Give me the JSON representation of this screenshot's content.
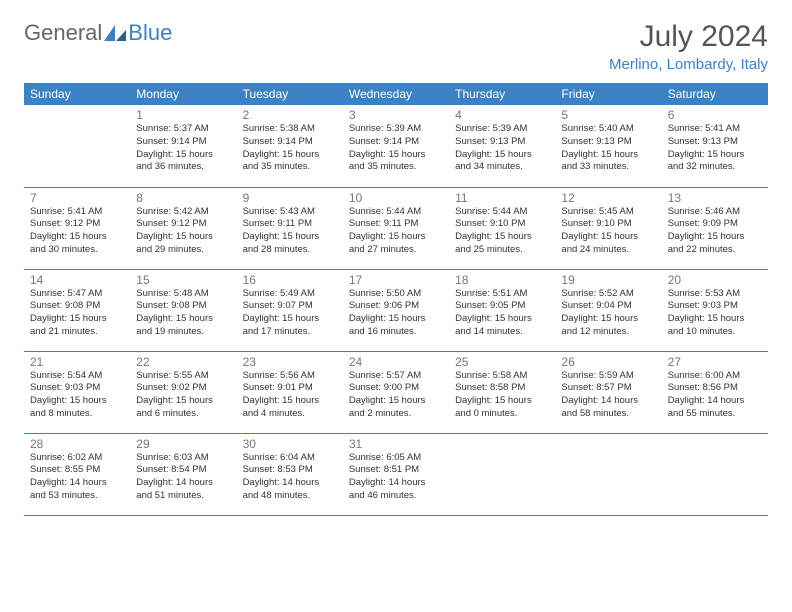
{
  "brand": {
    "part1": "General",
    "part2": "Blue"
  },
  "title": "July 2024",
  "subtitle": "Merlino, Lombardy, Italy",
  "colors": {
    "accent": "#3b82c4",
    "headerText": "#ffffff",
    "body": "#333333",
    "daynum": "#777777"
  },
  "dayHeaders": [
    "Sunday",
    "Monday",
    "Tuesday",
    "Wednesday",
    "Thursday",
    "Friday",
    "Saturday"
  ],
  "weeks": [
    [
      null,
      {
        "n": "1",
        "sr": "5:37 AM",
        "ss": "9:14 PM",
        "dl": "15 hours and 36 minutes."
      },
      {
        "n": "2",
        "sr": "5:38 AM",
        "ss": "9:14 PM",
        "dl": "15 hours and 35 minutes."
      },
      {
        "n": "3",
        "sr": "5:39 AM",
        "ss": "9:14 PM",
        "dl": "15 hours and 35 minutes."
      },
      {
        "n": "4",
        "sr": "5:39 AM",
        "ss": "9:13 PM",
        "dl": "15 hours and 34 minutes."
      },
      {
        "n": "5",
        "sr": "5:40 AM",
        "ss": "9:13 PM",
        "dl": "15 hours and 33 minutes."
      },
      {
        "n": "6",
        "sr": "5:41 AM",
        "ss": "9:13 PM",
        "dl": "15 hours and 32 minutes."
      }
    ],
    [
      {
        "n": "7",
        "sr": "5:41 AM",
        "ss": "9:12 PM",
        "dl": "15 hours and 30 minutes."
      },
      {
        "n": "8",
        "sr": "5:42 AM",
        "ss": "9:12 PM",
        "dl": "15 hours and 29 minutes."
      },
      {
        "n": "9",
        "sr": "5:43 AM",
        "ss": "9:11 PM",
        "dl": "15 hours and 28 minutes."
      },
      {
        "n": "10",
        "sr": "5:44 AM",
        "ss": "9:11 PM",
        "dl": "15 hours and 27 minutes."
      },
      {
        "n": "11",
        "sr": "5:44 AM",
        "ss": "9:10 PM",
        "dl": "15 hours and 25 minutes."
      },
      {
        "n": "12",
        "sr": "5:45 AM",
        "ss": "9:10 PM",
        "dl": "15 hours and 24 minutes."
      },
      {
        "n": "13",
        "sr": "5:46 AM",
        "ss": "9:09 PM",
        "dl": "15 hours and 22 minutes."
      }
    ],
    [
      {
        "n": "14",
        "sr": "5:47 AM",
        "ss": "9:08 PM",
        "dl": "15 hours and 21 minutes."
      },
      {
        "n": "15",
        "sr": "5:48 AM",
        "ss": "9:08 PM",
        "dl": "15 hours and 19 minutes."
      },
      {
        "n": "16",
        "sr": "5:49 AM",
        "ss": "9:07 PM",
        "dl": "15 hours and 17 minutes."
      },
      {
        "n": "17",
        "sr": "5:50 AM",
        "ss": "9:06 PM",
        "dl": "15 hours and 16 minutes."
      },
      {
        "n": "18",
        "sr": "5:51 AM",
        "ss": "9:05 PM",
        "dl": "15 hours and 14 minutes."
      },
      {
        "n": "19",
        "sr": "5:52 AM",
        "ss": "9:04 PM",
        "dl": "15 hours and 12 minutes."
      },
      {
        "n": "20",
        "sr": "5:53 AM",
        "ss": "9:03 PM",
        "dl": "15 hours and 10 minutes."
      }
    ],
    [
      {
        "n": "21",
        "sr": "5:54 AM",
        "ss": "9:03 PM",
        "dl": "15 hours and 8 minutes."
      },
      {
        "n": "22",
        "sr": "5:55 AM",
        "ss": "9:02 PM",
        "dl": "15 hours and 6 minutes."
      },
      {
        "n": "23",
        "sr": "5:56 AM",
        "ss": "9:01 PM",
        "dl": "15 hours and 4 minutes."
      },
      {
        "n": "24",
        "sr": "5:57 AM",
        "ss": "9:00 PM",
        "dl": "15 hours and 2 minutes."
      },
      {
        "n": "25",
        "sr": "5:58 AM",
        "ss": "8:58 PM",
        "dl": "15 hours and 0 minutes."
      },
      {
        "n": "26",
        "sr": "5:59 AM",
        "ss": "8:57 PM",
        "dl": "14 hours and 58 minutes."
      },
      {
        "n": "27",
        "sr": "6:00 AM",
        "ss": "8:56 PM",
        "dl": "14 hours and 55 minutes."
      }
    ],
    [
      {
        "n": "28",
        "sr": "6:02 AM",
        "ss": "8:55 PM",
        "dl": "14 hours and 53 minutes."
      },
      {
        "n": "29",
        "sr": "6:03 AM",
        "ss": "8:54 PM",
        "dl": "14 hours and 51 minutes."
      },
      {
        "n": "30",
        "sr": "6:04 AM",
        "ss": "8:53 PM",
        "dl": "14 hours and 48 minutes."
      },
      {
        "n": "31",
        "sr": "6:05 AM",
        "ss": "8:51 PM",
        "dl": "14 hours and 46 minutes."
      },
      null,
      null,
      null
    ]
  ],
  "labels": {
    "sunrise": "Sunrise: ",
    "sunset": "Sunset: ",
    "daylight": "Daylight: "
  }
}
